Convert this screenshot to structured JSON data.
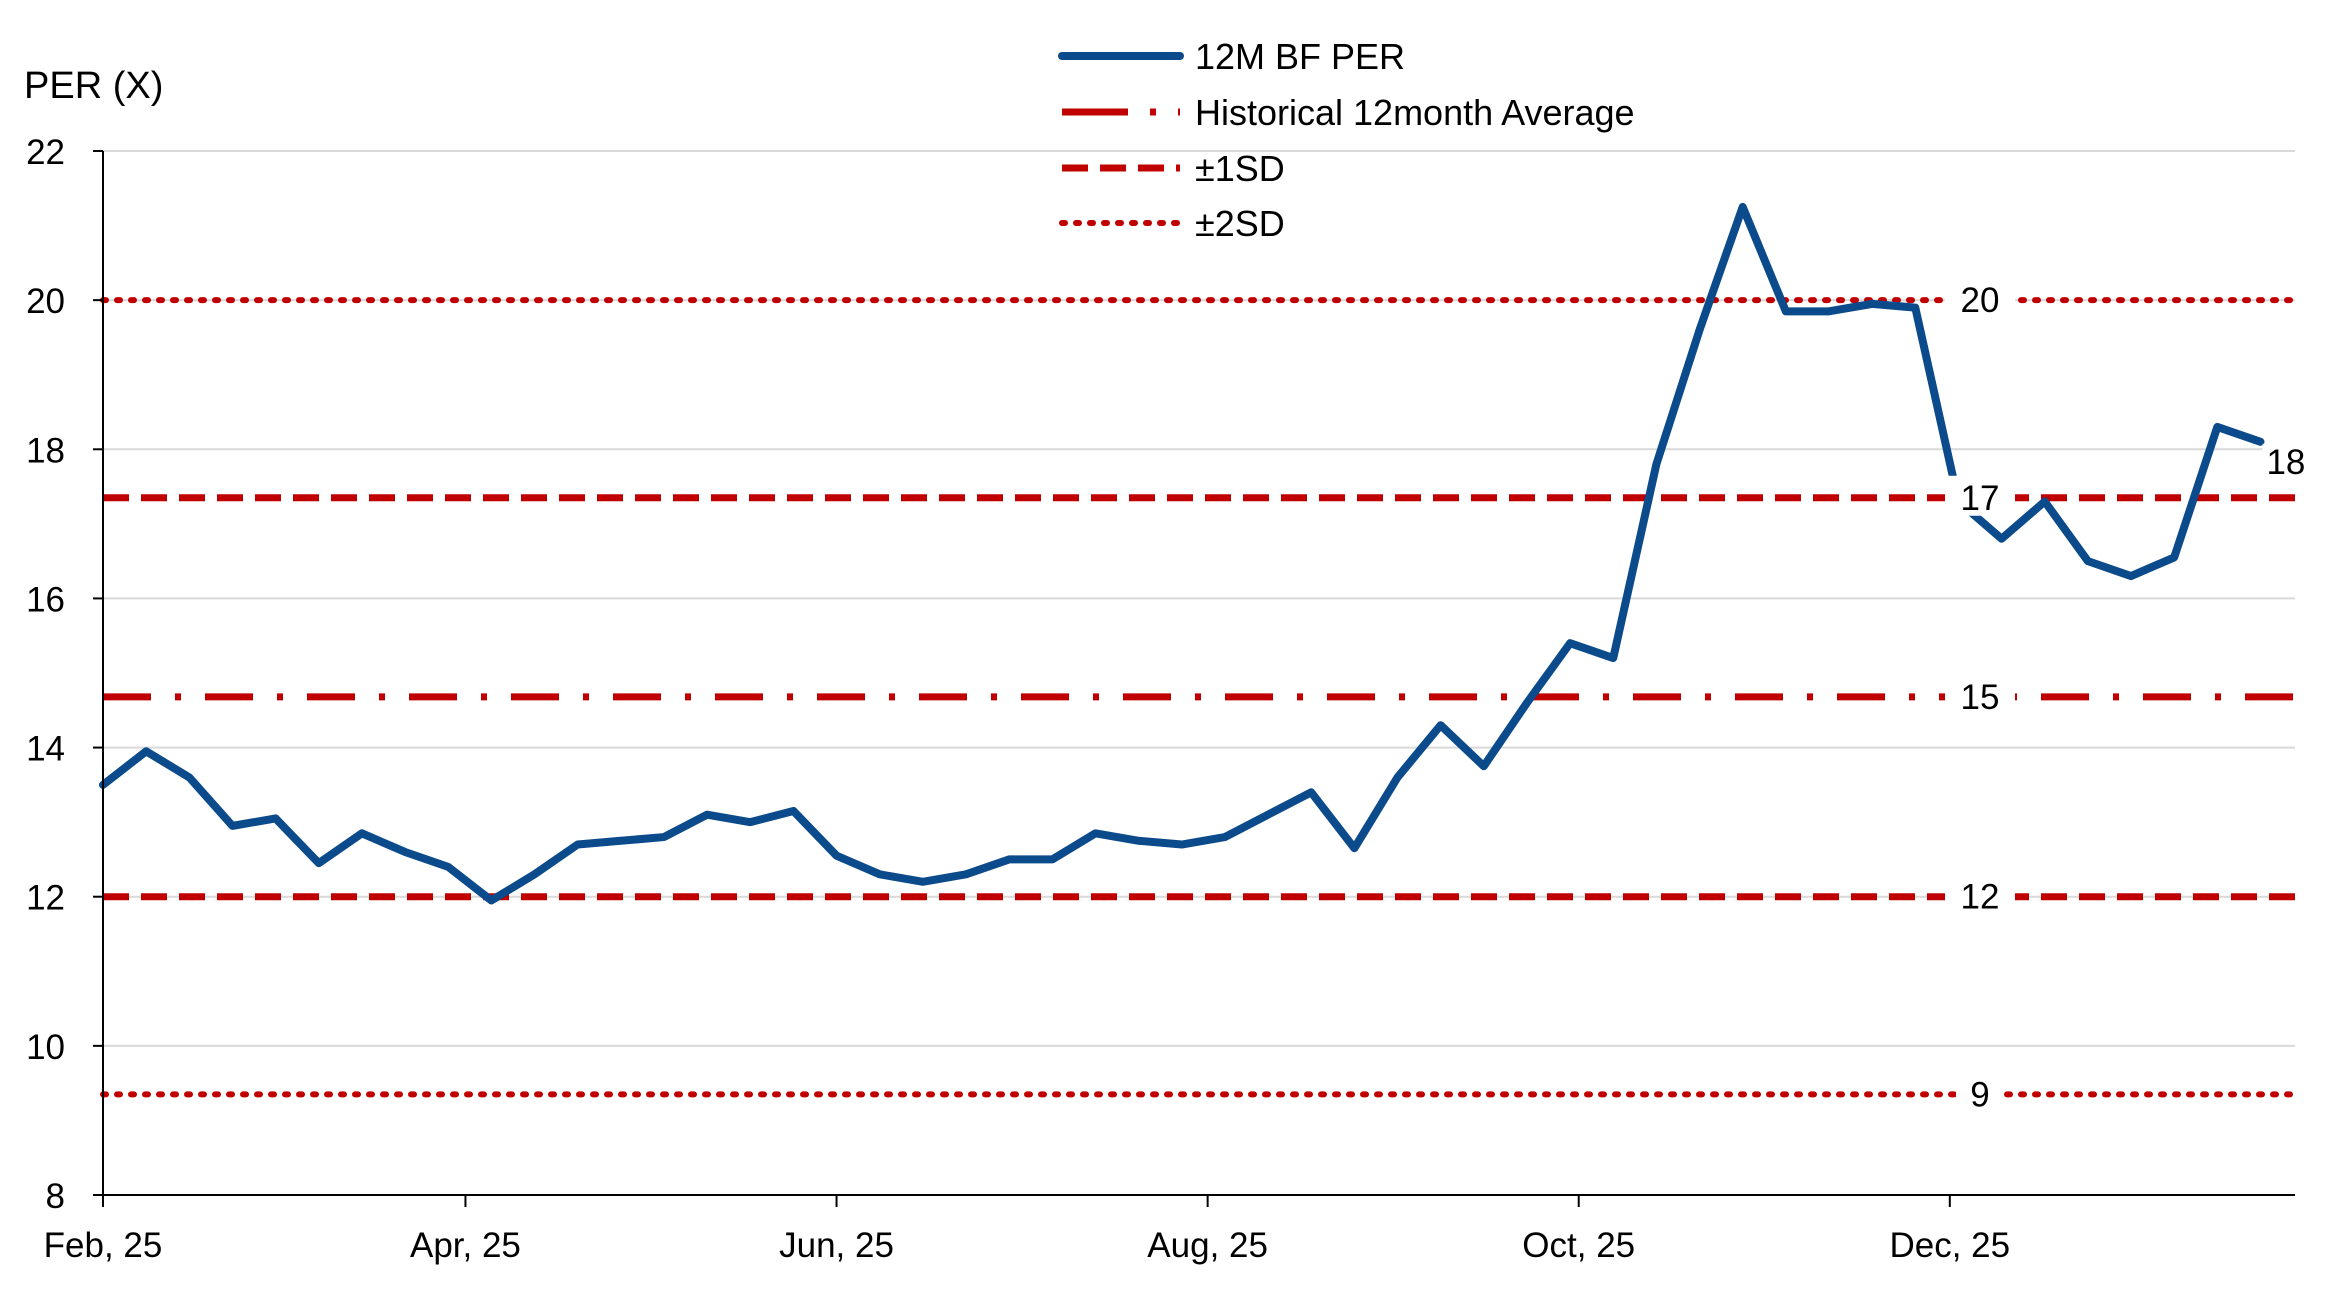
{
  "chart_data": {
    "type": "line",
    "ylabel": "PER (X)",
    "ylim": [
      8,
      22
    ],
    "yticks": [
      8,
      10,
      12,
      14,
      16,
      18,
      20,
      22
    ],
    "ytick_labels": [
      "8",
      "10",
      "12",
      "14",
      "16",
      "18",
      "20",
      "22"
    ],
    "xticks": [
      {
        "week": 0,
        "label": "Feb, 25"
      },
      {
        "week": 8.4,
        "label": "Apr, 25"
      },
      {
        "week": 17,
        "label": "Jun, 25"
      },
      {
        "week": 25.6,
        "label": "Aug, 25"
      },
      {
        "week": 34.2,
        "label": "Oct, 25"
      },
      {
        "week": 42.8,
        "label": "Dec, 25"
      }
    ],
    "x_range_weeks": [
      0,
      50.8
    ],
    "grid": true,
    "legend_position": "top-center",
    "series": [
      {
        "name": "12M BF PER",
        "style": "solid",
        "color": "#0b4a8b",
        "x_weeks": [
          0,
          1,
          2,
          3,
          4,
          5,
          6,
          7,
          8,
          9,
          10,
          11,
          12,
          13,
          14,
          15,
          16,
          17,
          18,
          19,
          20,
          21,
          22,
          23,
          24,
          25,
          26,
          27,
          28,
          29,
          30,
          31,
          32,
          33,
          34,
          35,
          36,
          37,
          38,
          39,
          40,
          41,
          42,
          43,
          44,
          45,
          46,
          47,
          48,
          49,
          50
        ],
        "values": [
          13.5,
          13.95,
          13.6,
          12.95,
          13.05,
          12.45,
          12.85,
          12.6,
          12.4,
          11.95,
          12.3,
          12.7,
          12.75,
          12.8,
          13.1,
          13.0,
          13.15,
          12.55,
          12.3,
          12.2,
          12.3,
          12.5,
          12.5,
          12.85,
          12.75,
          12.7,
          12.8,
          13.1,
          13.4,
          12.65,
          13.6,
          14.3,
          13.75,
          14.6,
          15.4,
          15.2,
          17.8,
          19.6,
          21.25,
          19.85,
          19.85,
          19.95,
          19.9,
          17.3,
          16.8,
          17.3,
          16.5,
          16.3,
          16.55,
          18.3,
          18.1
        ]
      }
    ],
    "reference_lines": [
      {
        "name": "Historical 12month Average",
        "style": "dash-dot",
        "value": 14.68,
        "label": "15"
      },
      {
        "name": "+1SD",
        "style": "dashed",
        "value": 17.35,
        "label": "17"
      },
      {
        "name": "-1SD",
        "style": "dashed",
        "value": 12.0,
        "label": "12"
      },
      {
        "name": "+2SD",
        "style": "dotted",
        "value": 20.0,
        "label": "20"
      },
      {
        "name": "-2SD",
        "style": "dotted",
        "value": 9.35,
        "label": "9"
      }
    ],
    "end_label": "18",
    "legend": [
      {
        "label": "12M BF PER",
        "style": "solid",
        "color": "#0b4a8b"
      },
      {
        "label": "Historical 12month Average",
        "style": "dash-dot",
        "color": "#c00000"
      },
      {
        "label": "±1SD",
        "style": "dashed",
        "color": "#c00000"
      },
      {
        "label": "±2SD",
        "style": "dotted",
        "color": "#c00000"
      }
    ]
  }
}
